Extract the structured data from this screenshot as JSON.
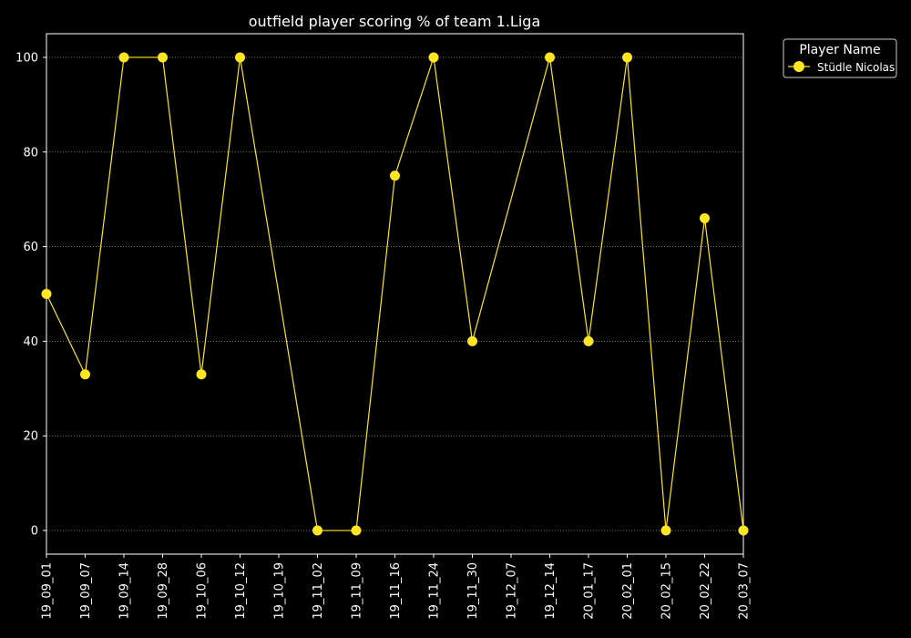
{
  "chart_data": {
    "type": "line",
    "title": "outfield player scoring % of team 1.Liga",
    "xlabel": "",
    "ylabel": "",
    "categories": [
      "19_09_01",
      "19_09_07",
      "19_09_14",
      "19_09_28",
      "19_10_06",
      "19_10_12",
      "19_10_19",
      "19_11_02",
      "19_11_09",
      "19_11_16",
      "19_11_24",
      "19_11_30",
      "19_12_07",
      "19_12_14",
      "20_01_17",
      "20_02_01",
      "20_02_15",
      "20_02_22",
      "20_03_07"
    ],
    "yticks": [
      0,
      20,
      40,
      60,
      80,
      100
    ],
    "ylim": [
      -5,
      105
    ],
    "grid": "horizontal dotted",
    "legend": {
      "title": "Player Name",
      "placement": "outside upper right"
    },
    "series": [
      {
        "name": "Stüdle Nicolas",
        "color": "#ffe622",
        "points": [
          {
            "x": "19_09_01",
            "y": 50
          },
          {
            "x": "19_09_07",
            "y": 33
          },
          {
            "x": "19_09_14",
            "y": 100
          },
          {
            "x": "19_09_28",
            "y": 100
          },
          {
            "x": "19_10_06",
            "y": 33
          },
          {
            "x": "19_10_12",
            "y": 100
          },
          {
            "x": "19_11_02",
            "y": 0
          },
          {
            "x": "19_11_09",
            "y": 0
          },
          {
            "x": "19_11_16",
            "y": 75
          },
          {
            "x": "19_11_24",
            "y": 100
          },
          {
            "x": "19_11_30",
            "y": 40
          },
          {
            "x": "19_12_14",
            "y": 100
          },
          {
            "x": "20_01_17",
            "y": 40
          },
          {
            "x": "20_02_01",
            "y": 100
          },
          {
            "x": "20_02_15",
            "y": 0
          },
          {
            "x": "20_02_22",
            "y": 66
          },
          {
            "x": "20_03_07",
            "y": 0
          }
        ]
      }
    ],
    "colors": {
      "background": "#000000",
      "foreground": "#ffffff",
      "grid": "#bbbbbb"
    }
  }
}
